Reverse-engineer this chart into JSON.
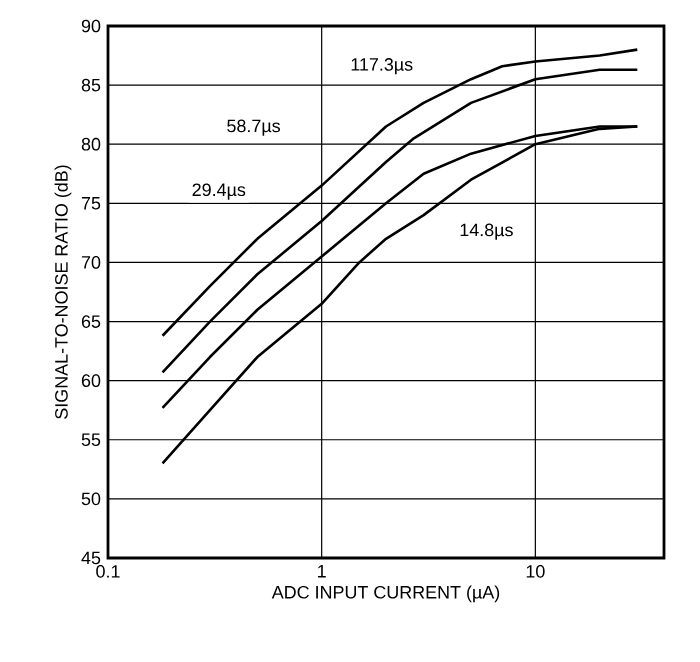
{
  "chart_data": {
    "type": "line",
    "xlabel": "ADC INPUT CURRENT (µA)",
    "ylabel": "SIGNAL-TO-NOISE RATIO (dB)",
    "log": "x",
    "grid": true,
    "marker": "none",
    "line_style": "solid",
    "xlim": [
      0.1,
      40
    ],
    "xticks": [
      {
        "value": 0.1,
        "label": "0.1"
      },
      {
        "value": 1,
        "label": "1"
      },
      {
        "value": 10,
        "label": "10"
      }
    ],
    "ylim": [
      45,
      90
    ],
    "yticks": [
      45,
      50,
      55,
      60,
      65,
      70,
      75,
      80,
      85,
      90
    ],
    "series": [
      {
        "color": "#000000",
        "x": [
          0.18,
          0.3,
          0.5,
          1,
          2,
          3,
          5,
          7,
          10,
          20,
          30
        ],
        "values": [
          63.8,
          68,
          72,
          76.5,
          81.5,
          83.5,
          85.5,
          86.6,
          87,
          87.5,
          88
        ]
      },
      {
        "color": "#000000",
        "x": [
          0.18,
          0.3,
          0.5,
          1,
          2,
          2.7,
          5,
          10,
          20,
          30
        ],
        "values": [
          60.7,
          65,
          69,
          73.5,
          78.5,
          80.5,
          83.5,
          85.5,
          86.3,
          86.3
        ]
      },
      {
        "color": "#000000",
        "x": [
          0.18,
          0.3,
          0.5,
          1,
          2,
          3,
          5,
          10,
          20,
          30
        ],
        "values": [
          57.7,
          62,
          66,
          70.5,
          75,
          77.5,
          79.2,
          80.7,
          81.5,
          81.5
        ]
      },
      {
        "color": "#000000",
        "x": [
          0.18,
          0.3,
          0.5,
          1,
          1.5,
          2,
          3,
          5,
          10,
          20,
          30
        ],
        "values": [
          53,
          57.5,
          62,
          66.5,
          70,
          72,
          74,
          77,
          80,
          81.3,
          81.5
        ]
      }
    ],
    "annotations": [
      {
        "text": "117.3µs",
        "x": 1.91,
        "y": 86.6
      },
      {
        "text": "58.7µs",
        "x": 0.48,
        "y": 81.4
      },
      {
        "text": "29.4µs",
        "x": 0.33,
        "y": 76
      },
      {
        "text": "14.8µs",
        "x": 5.9,
        "y": 72.6
      }
    ]
  }
}
